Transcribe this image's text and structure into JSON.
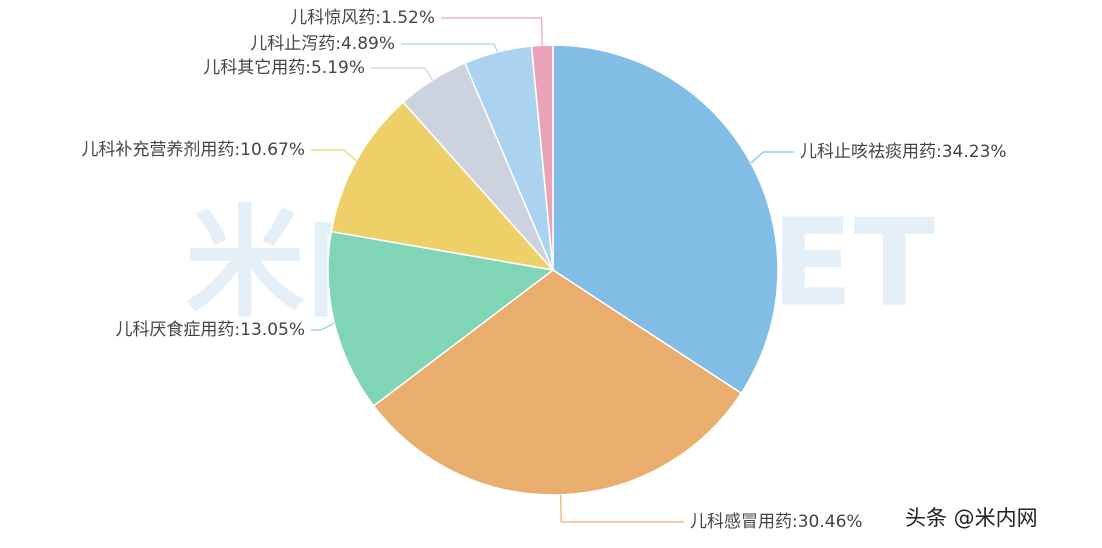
{
  "chart_data": {
    "type": "pie",
    "labels": [
      "儿科止咳祛痰用药:34.23%",
      "儿科感冒用药:30.46%",
      "儿科厌食症用药:13.05%",
      "儿科补充营养剂用药:10.67%",
      "儿科其它用药:5.19%",
      "儿科止泻药:4.89%",
      "儿科惊风药:1.52%"
    ],
    "values": [
      34.23,
      30.46,
      13.05,
      10.67,
      5.19,
      4.89,
      1.52
    ],
    "colors": [
      "#82bde6",
      "#e9ad6e",
      "#7fd5b6",
      "#edd168",
      "#ccd3de",
      "#abd3f0",
      "#e8a3b8"
    ],
    "watermark": "米内IMENET",
    "credit": "头条 @米内网"
  }
}
